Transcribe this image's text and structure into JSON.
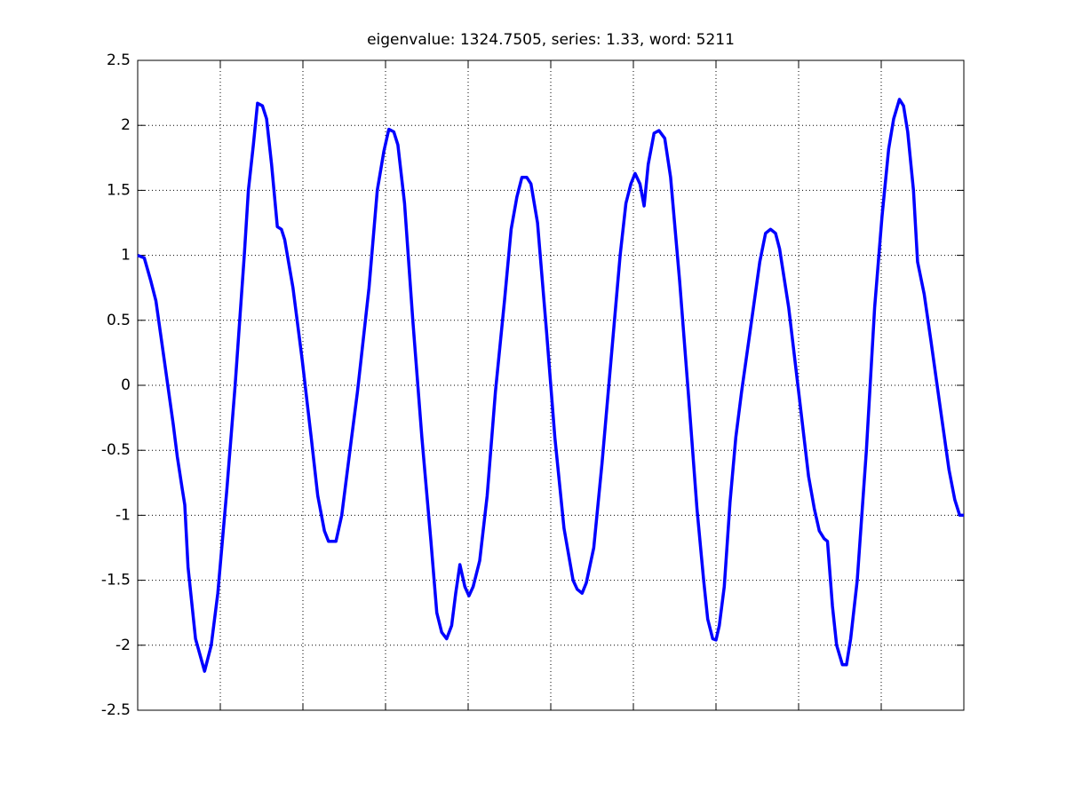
{
  "chart_data": {
    "type": "line",
    "title": "eigenvalue: 1324.7505, series: 1.33, word: 5211",
    "xlim": [
      0,
      100
    ],
    "xticks": [
      10,
      20,
      30,
      40,
      50,
      60,
      70,
      80,
      90
    ],
    "ylim": [
      -2.5,
      2.5
    ],
    "yticks": [
      -2.5,
      -2,
      -1.5,
      -1,
      -0.5,
      0,
      0.5,
      1,
      1.5,
      2,
      2.5
    ],
    "grid": true,
    "x": [
      0,
      0.8,
      1.6,
      2.2,
      3.2,
      4.3,
      4.8,
      5.4,
      5.7,
      6.1,
      7.0,
      8.1,
      8.9,
      9.7,
      10.8,
      11.8,
      12.9,
      13.4,
      14.0,
      14.5,
      15.1,
      15.6,
      16.2,
      16.9,
      17.4,
      17.8,
      18.8,
      19.9,
      21.0,
      21.8,
      22.6,
      23.1,
      24.0,
      24.7,
      25.5,
      26.6,
      28.0,
      29.0,
      29.8,
      30.4,
      31.0,
      31.5,
      32.3,
      33.3,
      34.4,
      35.5,
      36.2,
      36.8,
      37.4,
      38.0,
      38.5,
      39.0,
      39.6,
      40.1,
      40.6,
      41.4,
      42.3,
      43.3,
      44.4,
      45.2,
      45.9,
      46.5,
      47.1,
      47.6,
      48.4,
      49.5,
      50.5,
      51.6,
      52.7,
      53.2,
      53.8,
      54.3,
      55.2,
      56.2,
      57.3,
      58.4,
      59.1,
      59.7,
      60.2,
      60.8,
      61.3,
      61.8,
      62.5,
      63.1,
      63.8,
      64.5,
      65.6,
      66.7,
      67.7,
      68.5,
      69.0,
      69.6,
      70.0,
      70.4,
      71.0,
      71.7,
      72.4,
      73.1,
      74.2,
      75.3,
      76.0,
      76.6,
      77.2,
      77.7,
      78.8,
      80.1,
      81.2,
      81.9,
      82.5,
      83.1,
      83.5,
      84.1,
      84.6,
      85.3,
      85.8,
      86.3,
      87.1,
      88.2,
      89.2,
      90.1,
      90.9,
      91.5,
      92.2,
      92.7,
      93.2,
      93.9,
      94.4,
      95.2,
      96.0,
      97.1,
      98.2,
      98.9,
      99.5,
      100
    ],
    "series": [
      {
        "color": "#0000ff",
        "values": [
          1.0,
          0.98,
          0.8,
          0.65,
          0.2,
          -0.3,
          -0.55,
          -0.8,
          -0.92,
          -1.4,
          -1.95,
          -2.2,
          -2.0,
          -1.6,
          -0.8,
          0.0,
          1.0,
          1.5,
          1.85,
          2.17,
          2.15,
          2.05,
          1.7,
          1.22,
          1.2,
          1.12,
          0.75,
          0.2,
          -0.4,
          -0.85,
          -1.12,
          -1.2,
          -1.2,
          -1.0,
          -0.6,
          -0.05,
          0.75,
          1.5,
          1.8,
          1.97,
          1.95,
          1.85,
          1.4,
          0.5,
          -0.4,
          -1.2,
          -1.75,
          -1.9,
          -1.95,
          -1.85,
          -1.6,
          -1.38,
          -1.55,
          -1.62,
          -1.55,
          -1.35,
          -0.85,
          -0.05,
          0.65,
          1.2,
          1.45,
          1.6,
          1.6,
          1.55,
          1.25,
          0.4,
          -0.4,
          -1.1,
          -1.5,
          -1.57,
          -1.6,
          -1.52,
          -1.25,
          -0.6,
          0.2,
          1.0,
          1.4,
          1.55,
          1.63,
          1.55,
          1.38,
          1.7,
          1.94,
          1.96,
          1.9,
          1.6,
          0.8,
          -0.1,
          -0.95,
          -1.5,
          -1.8,
          -1.95,
          -1.96,
          -1.85,
          -1.55,
          -0.9,
          -0.4,
          -0.05,
          0.45,
          0.95,
          1.17,
          1.2,
          1.17,
          1.05,
          0.6,
          -0.1,
          -0.7,
          -0.95,
          -1.12,
          -1.18,
          -1.2,
          -1.7,
          -2.0,
          -2.15,
          -2.15,
          -1.95,
          -1.5,
          -0.5,
          0.6,
          1.3,
          1.82,
          2.05,
          2.2,
          2.15,
          1.95,
          1.5,
          0.95,
          0.7,
          0.35,
          -0.15,
          -0.65,
          -0.88,
          -1.0,
          -1.0
        ]
      }
    ]
  }
}
